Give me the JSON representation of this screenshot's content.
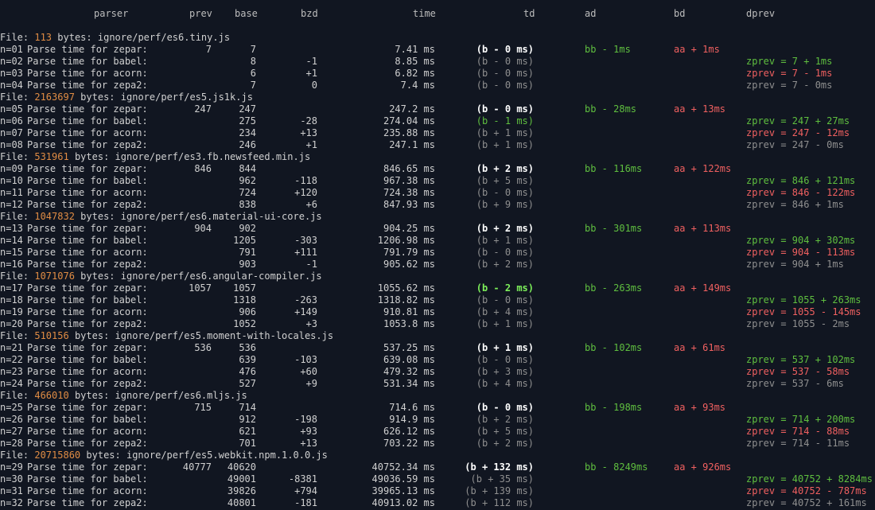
{
  "headers": {
    "parser": "parser",
    "prev": "prev",
    "base": "base",
    "bzd": "bzd",
    "time": "time",
    "td": "td",
    "ad": "ad",
    "bd": "bd",
    "dprev": "dprev"
  },
  "colors": {
    "bg": "#111621",
    "text": "#d0d0d0",
    "header": "#bdbdbd",
    "gray": "#8f8f8f",
    "white": "#ffffff",
    "green": "#5fbf3f",
    "bright_green": "#7df05a",
    "red": "#f06060",
    "orange": "#e08c44"
  },
  "file_label": "File:",
  "bytes_label": "bytes:",
  "groups": [
    {
      "size": "113",
      "path": "ignore/perf/es6.tiny.js",
      "rows": [
        {
          "n": "n=01",
          "parser": "Parse time for zepar:",
          "prev": "7",
          "base": "7",
          "bzd": "",
          "time": "7.41 ms",
          "td": "(b - 0 ms)",
          "td_style": "white",
          "ad": "bb - 1ms",
          "bd": "aa + 1ms",
          "dprev": "",
          "dprev_style": ""
        },
        {
          "n": "n=02",
          "parser": "Parse time for babel:",
          "prev": "",
          "base": "8",
          "bzd": "-1",
          "time": "8.85 ms",
          "td": "(b - 0 ms)",
          "td_style": "gray",
          "ad": "",
          "bd": "",
          "dprev": "zprev = 7 + 1ms",
          "dprev_style": "green"
        },
        {
          "n": "n=03",
          "parser": "Parse time for acorn:",
          "prev": "",
          "base": "6",
          "bzd": "+1",
          "time": "6.82 ms",
          "td": "(b - 0 ms)",
          "td_style": "gray",
          "ad": "",
          "bd": "",
          "dprev": "zprev = 7 - 1ms",
          "dprev_style": "red"
        },
        {
          "n": "n=04",
          "parser": "Parse time for zepa2:",
          "prev": "",
          "base": "7",
          "bzd": "0",
          "time": "7.4 ms",
          "td": "(b - 0 ms)",
          "td_style": "gray",
          "ad": "",
          "bd": "",
          "dprev": "zprev = 7 - 0ms",
          "dprev_style": "gray"
        }
      ]
    },
    {
      "size": "2163697",
      "path": "ignore/perf/es5.js1k.js",
      "rows": [
        {
          "n": "n=05",
          "parser": "Parse time for zepar:",
          "prev": "247",
          "base": "247",
          "bzd": "",
          "time": "247.2 ms",
          "td": "(b - 0 ms)",
          "td_style": "white",
          "ad": "bb - 28ms",
          "bd": "aa + 13ms",
          "dprev": "",
          "dprev_style": ""
        },
        {
          "n": "n=06",
          "parser": "Parse time for babel:",
          "prev": "",
          "base": "275",
          "bzd": "-28",
          "time": "274.04 ms",
          "td": "(b - 1 ms)",
          "td_style": "green",
          "ad": "",
          "bd": "",
          "dprev": "zprev = 247 + 27ms",
          "dprev_style": "green"
        },
        {
          "n": "n=07",
          "parser": "Parse time for acorn:",
          "prev": "",
          "base": "234",
          "bzd": "+13",
          "time": "235.88 ms",
          "td": "(b + 1 ms)",
          "td_style": "gray",
          "ad": "",
          "bd": "",
          "dprev": "zprev = 247 - 12ms",
          "dprev_style": "red"
        },
        {
          "n": "n=08",
          "parser": "Parse time for zepa2:",
          "prev": "",
          "base": "246",
          "bzd": "+1",
          "time": "247.1 ms",
          "td": "(b + 1 ms)",
          "td_style": "gray",
          "ad": "",
          "bd": "",
          "dprev": "zprev = 247 - 0ms",
          "dprev_style": "gray"
        }
      ]
    },
    {
      "size": "531961",
      "path": "ignore/perf/es3.fb.newsfeed.min.js",
      "rows": [
        {
          "n": "n=09",
          "parser": "Parse time for zepar:",
          "prev": "846",
          "base": "844",
          "bzd": "",
          "time": "846.65 ms",
          "td": "(b + 2 ms)",
          "td_style": "white",
          "ad": "bb - 116ms",
          "bd": "aa + 122ms",
          "dprev": "",
          "dprev_style": ""
        },
        {
          "n": "n=10",
          "parser": "Parse time for babel:",
          "prev": "",
          "base": "962",
          "bzd": "-118",
          "time": "967.38 ms",
          "td": "(b + 5 ms)",
          "td_style": "gray",
          "ad": "",
          "bd": "",
          "dprev": "zprev = 846 + 121ms",
          "dprev_style": "green"
        },
        {
          "n": "n=11",
          "parser": "Parse time for acorn:",
          "prev": "",
          "base": "724",
          "bzd": "+120",
          "time": "724.38 ms",
          "td": "(b - 0 ms)",
          "td_style": "gray",
          "ad": "",
          "bd": "",
          "dprev": "zprev = 846 - 122ms",
          "dprev_style": "red"
        },
        {
          "n": "n=12",
          "parser": "Parse time for zepa2:",
          "prev": "",
          "base": "838",
          "bzd": "+6",
          "time": "847.93 ms",
          "td": "(b + 9 ms)",
          "td_style": "gray",
          "ad": "",
          "bd": "",
          "dprev": "zprev = 846 + 1ms",
          "dprev_style": "gray"
        }
      ]
    },
    {
      "size": "1047832",
      "path": "ignore/perf/es6.material-ui-core.js",
      "rows": [
        {
          "n": "n=13",
          "parser": "Parse time for zepar:",
          "prev": "904",
          "base": "902",
          "bzd": "",
          "time": "904.25 ms",
          "td": "(b + 2 ms)",
          "td_style": "white",
          "ad": "bb - 301ms",
          "bd": "aa + 113ms",
          "dprev": "",
          "dprev_style": ""
        },
        {
          "n": "n=14",
          "parser": "Parse time for babel:",
          "prev": "",
          "base": "1205",
          "bzd": "-303",
          "time": "1206.98 ms",
          "td": "(b + 1 ms)",
          "td_style": "gray",
          "ad": "",
          "bd": "",
          "dprev": "zprev = 904 + 302ms",
          "dprev_style": "green"
        },
        {
          "n": "n=15",
          "parser": "Parse time for acorn:",
          "prev": "",
          "base": "791",
          "bzd": "+111",
          "time": "791.79 ms",
          "td": "(b - 0 ms)",
          "td_style": "gray",
          "ad": "",
          "bd": "",
          "dprev": "zprev = 904 - 113ms",
          "dprev_style": "red"
        },
        {
          "n": "n=16",
          "parser": "Parse time for zepa2:",
          "prev": "",
          "base": "903",
          "bzd": "-1",
          "time": "905.62 ms",
          "td": "(b + 2 ms)",
          "td_style": "gray",
          "ad": "",
          "bd": "",
          "dprev": "zprev = 904 + 1ms",
          "dprev_style": "gray"
        }
      ]
    },
    {
      "size": "1071076",
      "path": "ignore/perf/es6.angular-compiler.js",
      "rows": [
        {
          "n": "n=17",
          "parser": "Parse time for zepar:",
          "prev": "1057",
          "base": "1057",
          "bzd": "",
          "time": "1055.62 ms",
          "td": "(b - 2 ms)",
          "td_style": "bright_green",
          "ad": "bb - 263ms",
          "bd": "aa + 149ms",
          "dprev": "",
          "dprev_style": ""
        },
        {
          "n": "n=18",
          "parser": "Parse time for babel:",
          "prev": "",
          "base": "1318",
          "bzd": "-263",
          "time": "1318.82 ms",
          "td": "(b - 0 ms)",
          "td_style": "gray",
          "ad": "",
          "bd": "",
          "dprev": "zprev = 1055 + 263ms",
          "dprev_style": "green"
        },
        {
          "n": "n=19",
          "parser": "Parse time for acorn:",
          "prev": "",
          "base": "906",
          "bzd": "+149",
          "time": "910.81 ms",
          "td": "(b + 4 ms)",
          "td_style": "gray",
          "ad": "",
          "bd": "",
          "dprev": "zprev = 1055 - 145ms",
          "dprev_style": "red"
        },
        {
          "n": "n=20",
          "parser": "Parse time for zepa2:",
          "prev": "",
          "base": "1052",
          "bzd": "+3",
          "time": "1053.8 ms",
          "td": "(b + 1 ms)",
          "td_style": "gray",
          "ad": "",
          "bd": "",
          "dprev": "zprev = 1055 - 2ms",
          "dprev_style": "gray"
        }
      ]
    },
    {
      "size": "510156",
      "path": "ignore/perf/es5.moment-with-locales.js",
      "rows": [
        {
          "n": "n=21",
          "parser": "Parse time for zepar:",
          "prev": "536",
          "base": "536",
          "bzd": "",
          "time": "537.25 ms",
          "td": "(b + 1 ms)",
          "td_style": "white",
          "ad": "bb - 102ms",
          "bd": "aa + 61ms",
          "dprev": "",
          "dprev_style": ""
        },
        {
          "n": "n=22",
          "parser": "Parse time for babel:",
          "prev": "",
          "base": "639",
          "bzd": "-103",
          "time": "639.08 ms",
          "td": "(b - 0 ms)",
          "td_style": "gray",
          "ad": "",
          "bd": "",
          "dprev": "zprev = 537 + 102ms",
          "dprev_style": "green"
        },
        {
          "n": "n=23",
          "parser": "Parse time for acorn:",
          "prev": "",
          "base": "476",
          "bzd": "+60",
          "time": "479.32 ms",
          "td": "(b + 3 ms)",
          "td_style": "gray",
          "ad": "",
          "bd": "",
          "dprev": "zprev = 537 - 58ms",
          "dprev_style": "red"
        },
        {
          "n": "n=24",
          "parser": "Parse time for zepa2:",
          "prev": "",
          "base": "527",
          "bzd": "+9",
          "time": "531.34 ms",
          "td": "(b + 4 ms)",
          "td_style": "gray",
          "ad": "",
          "bd": "",
          "dprev": "zprev = 537 - 6ms",
          "dprev_style": "gray"
        }
      ]
    },
    {
      "size": "466010",
      "path": "ignore/perf/es6.mljs.js",
      "rows": [
        {
          "n": "n=25",
          "parser": "Parse time for zepar:",
          "prev": "715",
          "base": "714",
          "bzd": "",
          "time": "714.6 ms",
          "td": "(b - 0 ms)",
          "td_style": "white",
          "ad": "bb - 198ms",
          "bd": "aa + 93ms",
          "dprev": "",
          "dprev_style": ""
        },
        {
          "n": "n=26",
          "parser": "Parse time for babel:",
          "prev": "",
          "base": "912",
          "bzd": "-198",
          "time": "914.9 ms",
          "td": "(b + 2 ms)",
          "td_style": "gray",
          "ad": "",
          "bd": "",
          "dprev": "zprev = 714 + 200ms",
          "dprev_style": "green"
        },
        {
          "n": "n=27",
          "parser": "Parse time for acorn:",
          "prev": "",
          "base": "621",
          "bzd": "+93",
          "time": "626.12 ms",
          "td": "(b + 5 ms)",
          "td_style": "gray",
          "ad": "",
          "bd": "",
          "dprev": "zprev = 714 - 88ms",
          "dprev_style": "red"
        },
        {
          "n": "n=28",
          "parser": "Parse time for zepa2:",
          "prev": "",
          "base": "701",
          "bzd": "+13",
          "time": "703.22 ms",
          "td": "(b + 2 ms)",
          "td_style": "gray",
          "ad": "",
          "bd": "",
          "dprev": "zprev = 714 - 11ms",
          "dprev_style": "gray"
        }
      ]
    },
    {
      "size": "20715860",
      "path": "ignore/perf/es5.webkit.npm.1.0.0.js",
      "rows": [
        {
          "n": "n=29",
          "parser": "Parse time for zepar:",
          "prev": "40777",
          "base": "40620",
          "bzd": "",
          "time": "40752.34 ms",
          "td": "(b + 132 ms)",
          "td_style": "white",
          "ad": "bb - 8249ms",
          "bd": "aa + 926ms",
          "dprev": "",
          "dprev_style": ""
        },
        {
          "n": "n=30",
          "parser": "Parse time for babel:",
          "prev": "",
          "base": "49001",
          "bzd": "-8381",
          "time": "49036.59 ms",
          "td": "(b + 35 ms)",
          "td_style": "gray",
          "ad": "",
          "bd": "",
          "dprev": "zprev = 40752 + 8284ms",
          "dprev_style": "green"
        },
        {
          "n": "n=31",
          "parser": "Parse time for acorn:",
          "prev": "",
          "base": "39826",
          "bzd": "+794",
          "time": "39965.13 ms",
          "td": "(b + 139 ms)",
          "td_style": "gray",
          "ad": "",
          "bd": "",
          "dprev": "zprev = 40752 - 787ms",
          "dprev_style": "red"
        },
        {
          "n": "n=32",
          "parser": "Parse time for zepa2:",
          "prev": "",
          "base": "40801",
          "bzd": "-181",
          "time": "40913.02 ms",
          "td": "(b + 112 ms)",
          "td_style": "gray",
          "ad": "",
          "bd": "",
          "dprev": "zprev = 40752 + 161ms",
          "dprev_style": "gray"
        }
      ]
    }
  ]
}
